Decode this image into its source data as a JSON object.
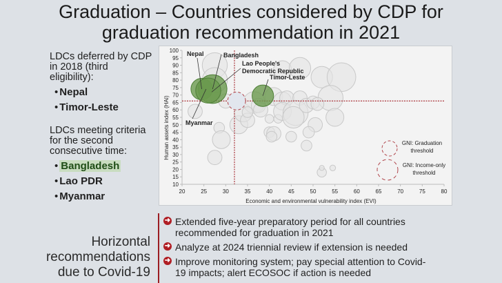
{
  "title": {
    "line1": "Graduation – Countries considered by CDP for",
    "line2": "graduation recommendation in 2021"
  },
  "left_panel": {
    "group1": {
      "heading_line1": "LDCs deferred by CDP",
      "heading_line2": "in 2018 (third",
      "heading_line3": "eligibility):",
      "items": [
        "Nepal",
        "Timor-Leste"
      ]
    },
    "group2": {
      "heading_line1": "LDCs meeting criteria",
      "heading_line2": "for the second",
      "heading_line3": "consecutive time:",
      "items": [
        "Bangladesh",
        "Lao PDR",
        "Myanmar"
      ]
    }
  },
  "chart_data": {
    "type": "scatter",
    "subtype": "bubble",
    "xlabel": "Economic and environmental vulnerability index (EVI)",
    "ylabel": "Human assets index (HAI)",
    "xlim": [
      20,
      80
    ],
    "ylim": [
      10,
      100
    ],
    "xticks": [
      20,
      25,
      30,
      35,
      40,
      45,
      50,
      55,
      60,
      65,
      70,
      75,
      80
    ],
    "yticks": [
      10,
      15,
      20,
      25,
      30,
      35,
      40,
      45,
      50,
      55,
      60,
      65,
      70,
      75,
      80,
      85,
      90,
      95,
      100
    ],
    "thresholds": {
      "evi": 32,
      "hai": 66
    },
    "highlighted": [
      {
        "name": "Nepal",
        "x": 24.5,
        "y": 74,
        "size": 3
      },
      {
        "name": "Bangladesh",
        "x": 27,
        "y": 74,
        "size": 4
      },
      {
        "name": "Myanmar",
        "x": 26,
        "y": 73,
        "size": 3.5
      },
      {
        "name": "Timor-Leste",
        "x": 38.5,
        "y": 69.5,
        "size": 3
      }
    ],
    "annotations": [
      "Nepal",
      "Bangladesh",
      "Lao People's",
      "Democratic Republic",
      "Timor-Leste",
      "Myanmar"
    ],
    "lao_pdr": {
      "name": "Lao People's Democratic Republic",
      "x": 32.5,
      "y": 66,
      "size": 2.5
    },
    "others": [
      {
        "x": 27.5,
        "y": 90,
        "size": 3.5
      },
      {
        "x": 27.5,
        "y": 80,
        "size": 3.5
      },
      {
        "x": 23,
        "y": 59,
        "size": 2
      },
      {
        "x": 28.5,
        "y": 48,
        "size": 1.5
      },
      {
        "x": 29,
        "y": 40,
        "size": 2.5
      },
      {
        "x": 27.5,
        "y": 28,
        "size": 2
      },
      {
        "x": 33,
        "y": 50,
        "size": 2.5
      },
      {
        "x": 34,
        "y": 58,
        "size": 2.5
      },
      {
        "x": 35,
        "y": 53,
        "size": 2
      },
      {
        "x": 36.5,
        "y": 65,
        "size": 3
      },
      {
        "x": 37.5,
        "y": 63,
        "size": 2
      },
      {
        "x": 35,
        "y": 58.5,
        "size": 1.5
      },
      {
        "x": 40,
        "y": 54,
        "size": 1.2
      },
      {
        "x": 42,
        "y": 54,
        "size": 1.2
      },
      {
        "x": 41,
        "y": 69,
        "size": 2.5
      },
      {
        "x": 43,
        "y": 66,
        "size": 2.5
      },
      {
        "x": 44,
        "y": 68,
        "size": 2
      },
      {
        "x": 47,
        "y": 68,
        "size": 2
      },
      {
        "x": 43,
        "y": 59,
        "size": 2.5
      },
      {
        "x": 46,
        "y": 58,
        "size": 3.5
      },
      {
        "x": 45.5,
        "y": 55,
        "size": 3
      },
      {
        "x": 48.5,
        "y": 63,
        "size": 2
      },
      {
        "x": 50,
        "y": 65,
        "size": 1.8
      },
      {
        "x": 50.5,
        "y": 50,
        "size": 2
      },
      {
        "x": 49,
        "y": 45,
        "size": 1.6
      },
      {
        "x": 40,
        "y": 45,
        "size": 1.5
      },
      {
        "x": 41,
        "y": 44,
        "size": 2
      },
      {
        "x": 40.5,
        "y": 42,
        "size": 1.5
      },
      {
        "x": 45,
        "y": 42,
        "size": 1.5
      },
      {
        "x": 48.5,
        "y": 36,
        "size": 1.5
      },
      {
        "x": 43,
        "y": 87,
        "size": 2.5
      },
      {
        "x": 47,
        "y": 88,
        "size": 3
      },
      {
        "x": 52,
        "y": 82,
        "size": 3
      },
      {
        "x": 56.5,
        "y": 82,
        "size": 4
      },
      {
        "x": 54,
        "y": 68,
        "size": 3.5
      },
      {
        "x": 51,
        "y": 64,
        "size": 1.8
      },
      {
        "x": 52,
        "y": 18,
        "size": 1.3
      },
      {
        "x": 52,
        "y": 21,
        "size": 0.7
      },
      {
        "x": 54.5,
        "y": 21,
        "size": 0.8
      },
      {
        "x": 30,
        "y": 66,
        "size": 2
      },
      {
        "x": 38,
        "y": 60,
        "size": 2
      },
      {
        "x": 55,
        "y": 55,
        "size": 2.5
      }
    ],
    "legend": {
      "position": "bottom-right",
      "entries": [
        {
          "label_line1": "GNI: Graduation",
          "label_line2": "threshold"
        },
        {
          "label_line1": "GNI: Income-only",
          "label_line2": "threshold"
        }
      ]
    },
    "colors": {
      "highlight_fill": "#6a9a4e",
      "highlight_stroke": "#4f7f38",
      "other_fill": "#e4e4e4",
      "other_stroke": "#c8c8c8",
      "threshold": "#b0444a",
      "lao_stroke": "#b0444a"
    }
  },
  "bottom": {
    "left_line1": "Horizontal",
    "left_line2": "recommendations",
    "left_line3": "due to Covid-19",
    "recommendations": [
      {
        "line1": "Extended five-year preparatory period for all countries",
        "line2": "recommended for graduation in 2021"
      },
      {
        "line1": "Analyze at 2024 triennial review if extension is needed",
        "line2": ""
      },
      {
        "line1": "Improve monitoring system; pay special attention to Covid-",
        "line2": "19 impacts; alert ECOSOC if action is needed"
      }
    ],
    "arrow_icon": "circled-arrow-right-icon"
  }
}
